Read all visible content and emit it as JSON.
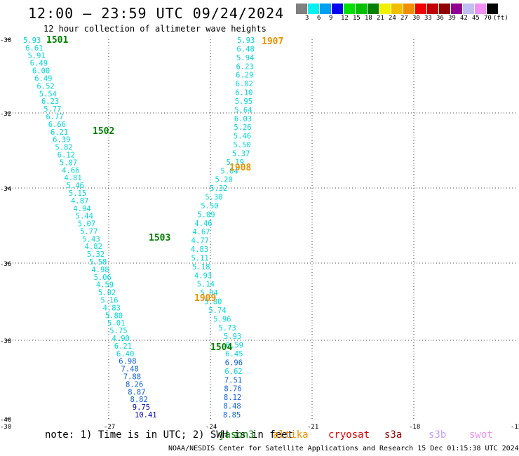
{
  "header": {
    "title": "12:00 – 23:59 UTC 09/24/2024",
    "subtitle": "12 hour collection of altimeter wave heights"
  },
  "colorbar": {
    "colors": [
      "#808080",
      "#00f0f0",
      "#00a0f0",
      "#0000f0",
      "#00e000",
      "#00c000",
      "#008000",
      "#f0f000",
      "#f0c000",
      "#f09000",
      "#f00000",
      "#c00000",
      "#900000",
      "#900090",
      "#c0c0f0",
      "#f090f0",
      "#000000"
    ],
    "labels": [
      "3",
      "6",
      "9",
      "12",
      "15",
      "18",
      "21",
      "24",
      "27",
      "30",
      "33",
      "36",
      "39",
      "42",
      "45",
      "70",
      "(ft)"
    ]
  },
  "map": {
    "lon_ticks": [
      "-30",
      "-27",
      "-24",
      "-21",
      "-18",
      "-15"
    ],
    "lat_ticks": [
      "-30",
      "-32",
      "-34",
      "-36",
      "-38",
      "-40"
    ]
  },
  "colors": {
    "cyan": "#00d8d8",
    "blue": "#1060e0",
    "darkblue": "#0000b0",
    "green": "#008000",
    "orange": "#f09000"
  },
  "pass_labels": [
    {
      "text": "1501",
      "color": "#008000"
    },
    {
      "text": "1502",
      "color": "#008000"
    },
    {
      "text": "1503",
      "color": "#008000"
    },
    {
      "text": "1504",
      "color": "#008000"
    },
    {
      "text": "1907",
      "color": "#f09000"
    },
    {
      "text": "1908",
      "color": "#f09000"
    },
    {
      "text": "1909",
      "color": "#f09000"
    }
  ],
  "track_a": [
    "5.93",
    "6.61",
    "5.91",
    "6.49",
    "6.00",
    "6.49",
    "6.52",
    "5.54",
    "6.23",
    "5.77",
    "6.77",
    "6.66",
    "6.21",
    "6.39",
    "5.82",
    "6.12",
    "5.07",
    "4.66",
    "4.81",
    "5.46",
    "5.15",
    "4.87",
    "4.94",
    "5.44",
    "5.07",
    "5.77",
    "5.43",
    "4.82",
    "5.32",
    "5.58",
    "4.98",
    "5.06",
    "4.59",
    "5.02",
    "5.16",
    "4.83",
    "5.80",
    "5.01",
    "5.75",
    "4.90",
    "6.21",
    "6.40",
    "6.98",
    "7.48",
    "7.88",
    "8.26",
    "8.87",
    "8.82",
    "9.75",
    "10.41"
  ],
  "track_b": [
    "5.93",
    "6.48",
    "5.94",
    "6.23",
    "6.29",
    "6.02",
    "6.10",
    "5.95",
    "5.64",
    "6.03",
    "5.26",
    "5.46",
    "5.50",
    "5.37",
    "5.19",
    "5.04",
    "5.20",
    "5.32",
    "5.38",
    "5.50",
    "5.09",
    "4.46",
    "4.67",
    "4.77",
    "4.83",
    "5.11",
    "5.18",
    "4.93",
    "5.14",
    "5.04",
    "5.80",
    "5.74",
    "5.96",
    "5.73",
    "5.93",
    "6.59",
    "6.45",
    "6.96",
    "6.62",
    "7.51",
    "8.76",
    "8.12",
    "8.48",
    "8.85"
  ],
  "note": "note: 1) Time is in UTC; 2) SWH is in feet",
  "missions": [
    {
      "text": "jason3",
      "color": "#008000"
    },
    {
      "text": "altika",
      "color": "#f09000"
    },
    {
      "text": "cryosat",
      "color": "#e00000"
    },
    {
      "text": "s3a",
      "color": "#900000"
    },
    {
      "text": "s3b",
      "color": "#c0a0f0"
    },
    {
      "text": "swot",
      "color": "#f090f0"
    }
  ],
  "credit": "NOAA/NESDIS Center for Satellite Applications and Research   15 Dec 01:15:38 UTC 2024"
}
